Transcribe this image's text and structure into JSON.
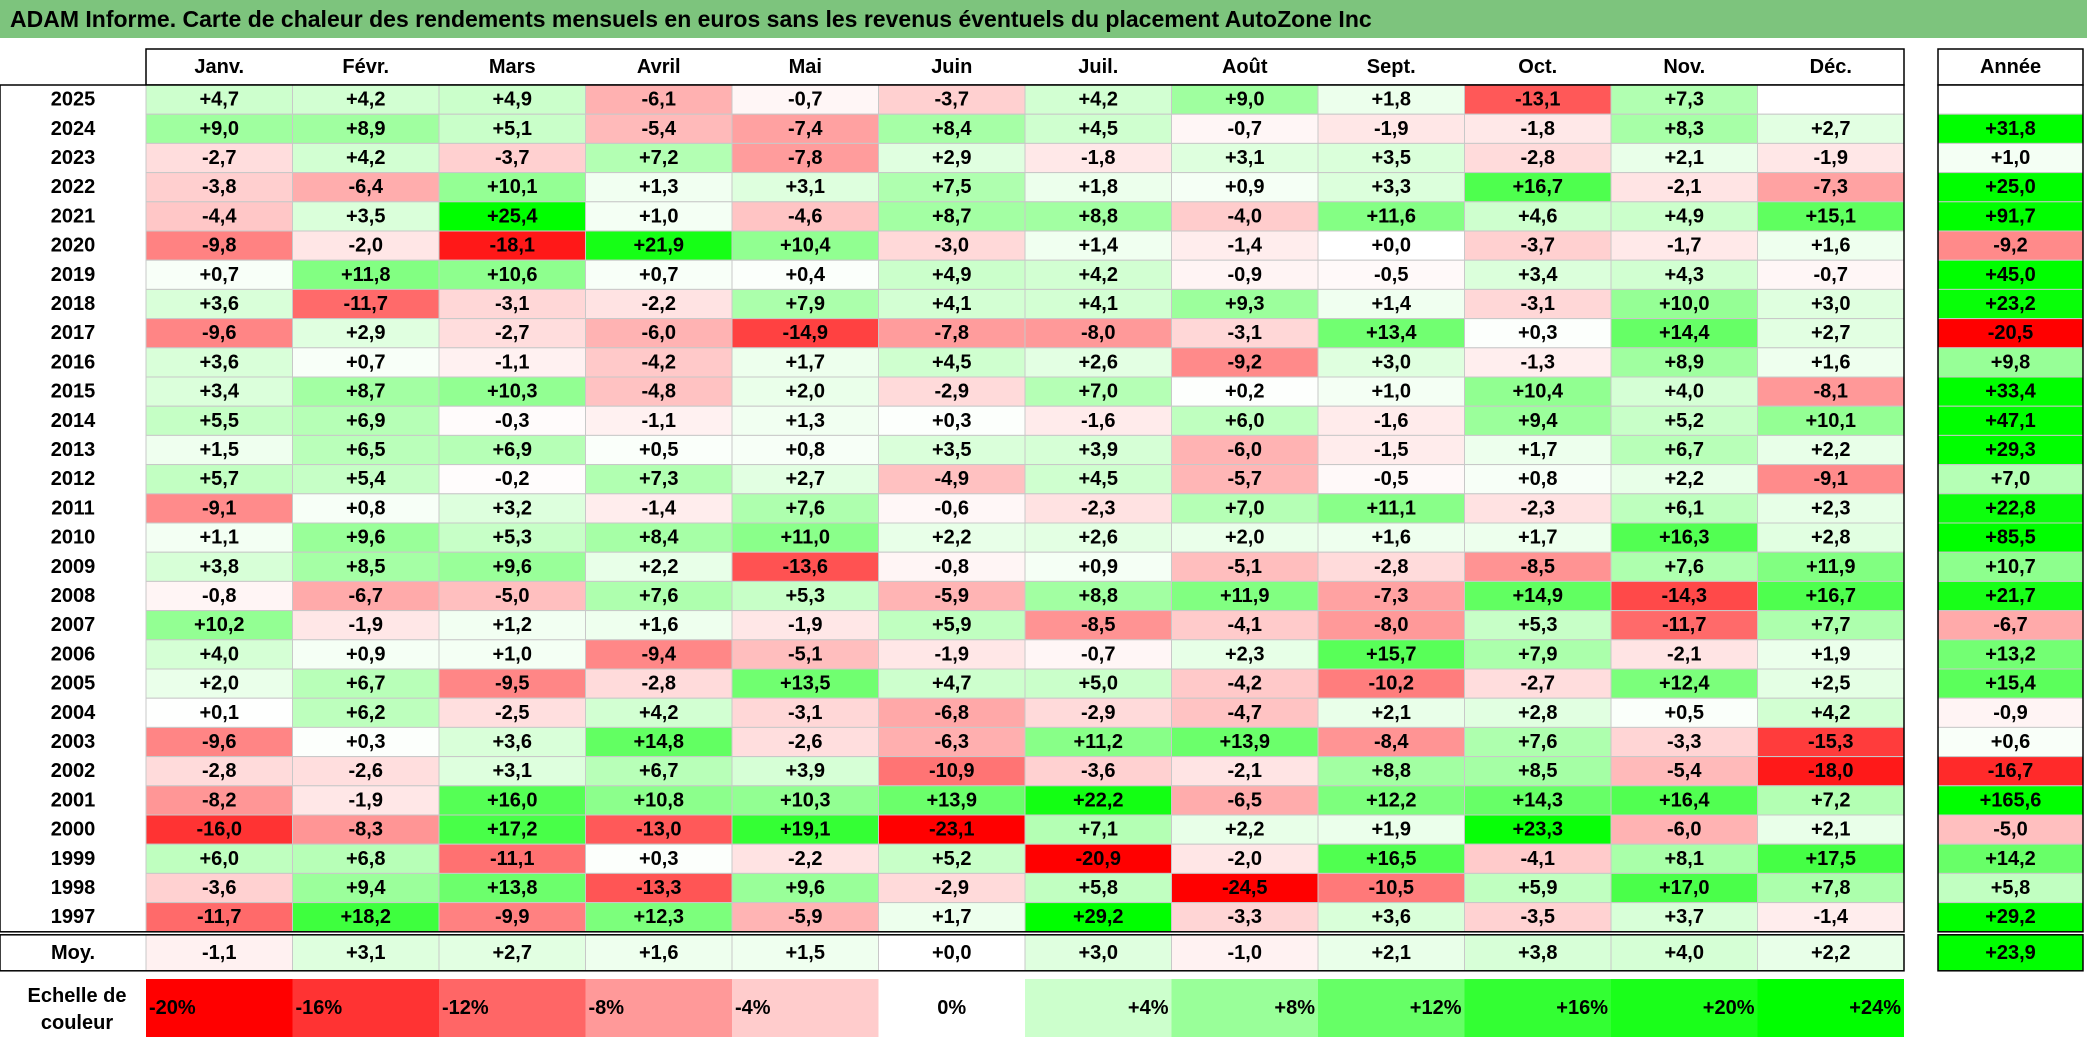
{
  "title": "ADAM Informe. Carte de chaleur des rendements mensuels en euros sans les revenus éventuels du placement AutoZone Inc",
  "chart_data": {
    "type": "heatmap",
    "months": [
      "Janv.",
      "Févr.",
      "Mars",
      "Avril",
      "Mai",
      "Juin",
      "Juil.",
      "Août",
      "Sept.",
      "Oct.",
      "Nov.",
      "Déc."
    ],
    "year_header": "Année",
    "rows": [
      {
        "year": "2025",
        "values": [
          "+4,7",
          "+4,2",
          "+4,9",
          "-6,1",
          "-0,7",
          "-3,7",
          "+4,2",
          "+9,0",
          "+1,8",
          "-13,1",
          "+7,3",
          ""
        ],
        "annual": ""
      },
      {
        "year": "2024",
        "values": [
          "+9,0",
          "+8,9",
          "+5,1",
          "-5,4",
          "-7,4",
          "+8,4",
          "+4,5",
          "-0,7",
          "-1,9",
          "-1,8",
          "+8,3",
          "+2,7"
        ],
        "annual": "+31,8"
      },
      {
        "year": "2023",
        "values": [
          "-2,7",
          "+4,2",
          "-3,7",
          "+7,2",
          "-7,8",
          "+2,9",
          "-1,8",
          "+3,1",
          "+3,5",
          "-2,8",
          "+2,1",
          "-1,9"
        ],
        "annual": "+1,0"
      },
      {
        "year": "2022",
        "values": [
          "-3,8",
          "-6,4",
          "+10,1",
          "+1,3",
          "+3,1",
          "+7,5",
          "+1,8",
          "+0,9",
          "+3,3",
          "+16,7",
          "-2,1",
          "-7,3"
        ],
        "annual": "+25,0"
      },
      {
        "year": "2021",
        "values": [
          "-4,4",
          "+3,5",
          "+25,4",
          "+1,0",
          "-4,6",
          "+8,7",
          "+8,8",
          "-4,0",
          "+11,6",
          "+4,6",
          "+4,9",
          "+15,1"
        ],
        "annual": "+91,7"
      },
      {
        "year": "2020",
        "values": [
          "-9,8",
          "-2,0",
          "-18,1",
          "+21,9",
          "+10,4",
          "-3,0",
          "+1,4",
          "-1,4",
          "+0,0",
          "-3,7",
          "-1,7",
          "+1,6"
        ],
        "annual": "-9,2"
      },
      {
        "year": "2019",
        "values": [
          "+0,7",
          "+11,8",
          "+10,6",
          "+0,7",
          "+0,4",
          "+4,9",
          "+4,2",
          "-0,9",
          "-0,5",
          "+3,4",
          "+4,3",
          "-0,7"
        ],
        "annual": "+45,0"
      },
      {
        "year": "2018",
        "values": [
          "+3,6",
          "-11,7",
          "-3,1",
          "-2,2",
          "+7,9",
          "+4,1",
          "+4,1",
          "+9,3",
          "+1,4",
          "-3,1",
          "+10,0",
          "+3,0"
        ],
        "annual": "+23,2"
      },
      {
        "year": "2017",
        "values": [
          "-9,6",
          "+2,9",
          "-2,7",
          "-6,0",
          "-14,9",
          "-7,8",
          "-8,0",
          "-3,1",
          "+13,4",
          "+0,3",
          "+14,4",
          "+2,7"
        ],
        "annual": "-20,5"
      },
      {
        "year": "2016",
        "values": [
          "+3,6",
          "+0,7",
          "-1,1",
          "-4,2",
          "+1,7",
          "+4,5",
          "+2,6",
          "-9,2",
          "+3,0",
          "-1,3",
          "+8,9",
          "+1,6"
        ],
        "annual": "+9,8"
      },
      {
        "year": "2015",
        "values": [
          "+3,4",
          "+8,7",
          "+10,3",
          "-4,8",
          "+2,0",
          "-2,9",
          "+7,0",
          "+0,2",
          "+1,0",
          "+10,4",
          "+4,0",
          "-8,1"
        ],
        "annual": "+33,4"
      },
      {
        "year": "2014",
        "values": [
          "+5,5",
          "+6,9",
          "-0,3",
          "-1,1",
          "+1,3",
          "+0,3",
          "-1,6",
          "+6,0",
          "-1,6",
          "+9,4",
          "+5,2",
          "+10,1"
        ],
        "annual": "+47,1"
      },
      {
        "year": "2013",
        "values": [
          "+1,5",
          "+6,5",
          "+6,9",
          "+0,5",
          "+0,8",
          "+3,5",
          "+3,9",
          "-6,0",
          "-1,5",
          "+1,7",
          "+6,7",
          "+2,2"
        ],
        "annual": "+29,3"
      },
      {
        "year": "2012",
        "values": [
          "+5,7",
          "+5,4",
          "-0,2",
          "+7,3",
          "+2,7",
          "-4,9",
          "+4,5",
          "-5,7",
          "-0,5",
          "+0,8",
          "+2,2",
          "-9,1"
        ],
        "annual": "+7,0"
      },
      {
        "year": "2011",
        "values": [
          "-9,1",
          "+0,8",
          "+3,2",
          "-1,4",
          "+7,6",
          "-0,6",
          "-2,3",
          "+7,0",
          "+11,1",
          "-2,3",
          "+6,1",
          "+2,3"
        ],
        "annual": "+22,8"
      },
      {
        "year": "2010",
        "values": [
          "+1,1",
          "+9,6",
          "+5,3",
          "+8,4",
          "+11,0",
          "+2,2",
          "+2,6",
          "+2,0",
          "+1,6",
          "+1,7",
          "+16,3",
          "+2,8"
        ],
        "annual": "+85,5"
      },
      {
        "year": "2009",
        "values": [
          "+3,8",
          "+8,5",
          "+9,6",
          "+2,2",
          "-13,6",
          "-0,8",
          "+0,9",
          "-5,1",
          "-2,8",
          "-8,5",
          "+7,6",
          "+11,9"
        ],
        "annual": "+10,7"
      },
      {
        "year": "2008",
        "values": [
          "-0,8",
          "-6,7",
          "-5,0",
          "+7,6",
          "+5,3",
          "-5,9",
          "+8,8",
          "+11,9",
          "-7,3",
          "+14,9",
          "-14,3",
          "+16,7"
        ],
        "annual": "+21,7"
      },
      {
        "year": "2007",
        "values": [
          "+10,2",
          "-1,9",
          "+1,2",
          "+1,6",
          "-1,9",
          "+5,9",
          "-8,5",
          "-4,1",
          "-8,0",
          "+5,3",
          "-11,7",
          "+7,7"
        ],
        "annual": "-6,7"
      },
      {
        "year": "2006",
        "values": [
          "+4,0",
          "+0,9",
          "+1,0",
          "-9,4",
          "-5,1",
          "-1,9",
          "-0,7",
          "+2,3",
          "+15,7",
          "+7,9",
          "-2,1",
          "+1,9"
        ],
        "annual": "+13,2"
      },
      {
        "year": "2005",
        "values": [
          "+2,0",
          "+6,7",
          "-9,5",
          "-2,8",
          "+13,5",
          "+4,7",
          "+5,0",
          "-4,2",
          "-10,2",
          "-2,7",
          "+12,4",
          "+2,5"
        ],
        "annual": "+15,4"
      },
      {
        "year": "2004",
        "values": [
          "+0,1",
          "+6,2",
          "-2,5",
          "+4,2",
          "-3,1",
          "-6,8",
          "-2,9",
          "-4,7",
          "+2,1",
          "+2,8",
          "+0,5",
          "+4,2"
        ],
        "annual": "-0,9"
      },
      {
        "year": "2003",
        "values": [
          "-9,6",
          "+0,3",
          "+3,6",
          "+14,8",
          "-2,6",
          "-6,3",
          "+11,2",
          "+13,9",
          "-8,4",
          "+7,6",
          "-3,3",
          "-15,3"
        ],
        "annual": "+0,6"
      },
      {
        "year": "2002",
        "values": [
          "-2,8",
          "-2,6",
          "+3,1",
          "+6,7",
          "+3,9",
          "-10,9",
          "-3,6",
          "-2,1",
          "+8,8",
          "+8,5",
          "-5,4",
          "-18,0"
        ],
        "annual": "-16,7"
      },
      {
        "year": "2001",
        "values": [
          "-8,2",
          "-1,9",
          "+16,0",
          "+10,8",
          "+10,3",
          "+13,9",
          "+22,2",
          "-6,5",
          "+12,2",
          "+14,3",
          "+16,4",
          "+7,2"
        ],
        "annual": "+165,6"
      },
      {
        "year": "2000",
        "values": [
          "-16,0",
          "-8,3",
          "+17,2",
          "-13,0",
          "+19,1",
          "-23,1",
          "+7,1",
          "+2,2",
          "+1,9",
          "+23,3",
          "-6,0",
          "+2,1"
        ],
        "annual": "-5,0"
      },
      {
        "year": "1999",
        "values": [
          "+6,0",
          "+6,8",
          "-11,1",
          "+0,3",
          "-2,2",
          "+5,2",
          "-20,9",
          "-2,0",
          "+16,5",
          "-4,1",
          "+8,1",
          "+17,5"
        ],
        "annual": "+14,2"
      },
      {
        "year": "1998",
        "values": [
          "-3,6",
          "+9,4",
          "+13,8",
          "-13,3",
          "+9,6",
          "-2,9",
          "+5,8",
          "-24,5",
          "-10,5",
          "+5,9",
          "+17,0",
          "+7,8"
        ],
        "annual": "+5,8"
      },
      {
        "year": "1997",
        "values": [
          "-11,7",
          "+18,2",
          "-9,9",
          "+12,3",
          "-5,9",
          "+1,7",
          "+29,2",
          "-3,3",
          "+3,6",
          "-3,5",
          "+3,7",
          "-1,4"
        ],
        "annual": "+29,2"
      }
    ],
    "average": {
      "label": "Moy.",
      "values": [
        "-1,1",
        "+3,1",
        "+2,7",
        "+1,6",
        "+1,5",
        "+0,0",
        "+3,0",
        "-1,0",
        "+2,1",
        "+3,8",
        "+4,0",
        "+2,2"
      ],
      "annual": "+23,9"
    },
    "scale": {
      "label_line1": "Echelle de",
      "label_line2": "couleur",
      "stops": [
        {
          "label": "-20%",
          "value": -20,
          "color": "#ff0000"
        },
        {
          "label": "-16%",
          "value": -16,
          "color": "#ff3333"
        },
        {
          "label": "-12%",
          "value": -12,
          "color": "#ff6666"
        },
        {
          "label": "-8%",
          "value": -8,
          "color": "#ff9999"
        },
        {
          "label": "-4%",
          "value": -4,
          "color": "#ffcccc"
        },
        {
          "label": "0%",
          "value": 0,
          "color": "#ffffff"
        },
        {
          "label": "+4%",
          "value": 4,
          "color": "#ccffcc"
        },
        {
          "label": "+8%",
          "value": 8,
          "color": "#99ff99"
        },
        {
          "label": "+12%",
          "value": 12,
          "color": "#66ff66"
        },
        {
          "label": "+16%",
          "value": 16,
          "color": "#33ff33"
        },
        {
          "label": "+20%",
          "value": 20,
          "color": "#1aff1a"
        },
        {
          "label": "+24%",
          "value": 24,
          "color": "#00ff00"
        }
      ]
    }
  }
}
